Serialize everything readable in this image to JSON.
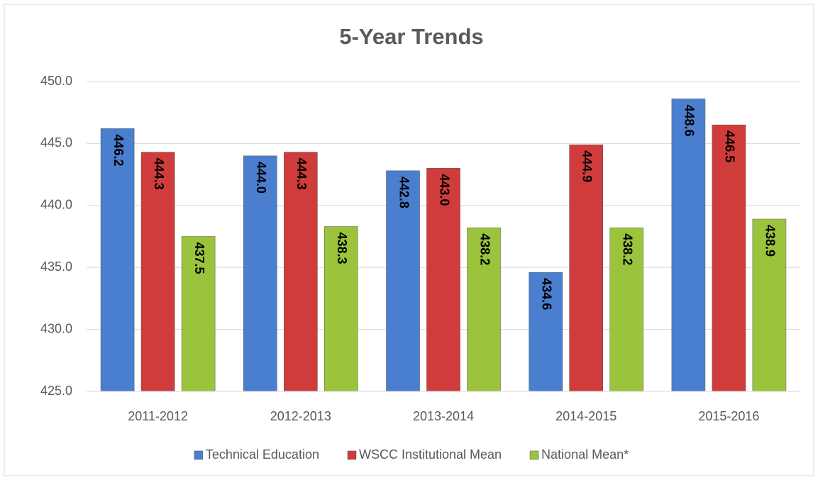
{
  "chart_data": {
    "type": "bar",
    "title": "5-Year Trends",
    "categories": [
      "2011-2012",
      "2012-2013",
      "2013-2014",
      "2014-2015",
      "2015-2016"
    ],
    "series": [
      {
        "name": "Technical Education",
        "color": "#4a7fd0",
        "values": [
          446.2,
          444.0,
          442.8,
          434.6,
          448.6
        ],
        "value_labels": [
          "446.2",
          "444.0",
          "442.8",
          "434.6",
          "448.6"
        ]
      },
      {
        "name": "WSCC Institutional Mean",
        "color": "#d03c3c",
        "values": [
          444.3,
          444.3,
          443.0,
          444.9,
          446.5
        ],
        "value_labels": [
          "444.3",
          "444.3",
          "443.0",
          "444.9",
          "446.5"
        ]
      },
      {
        "name": "National Mean*",
        "color": "#9bc43c",
        "values": [
          437.5,
          438.3,
          438.2,
          438.2,
          438.9
        ],
        "value_labels": [
          "437.5",
          "438.3",
          "438.2",
          "438.2",
          "438.9"
        ]
      }
    ],
    "ylim": [
      425,
      450
    ],
    "yticks": [
      {
        "value": 425,
        "label": "425.0"
      },
      {
        "value": 430,
        "label": "430.0"
      },
      {
        "value": 435,
        "label": "435.0"
      },
      {
        "value": 440,
        "label": "440.0"
      },
      {
        "value": 445,
        "label": "445.0"
      },
      {
        "value": 450,
        "label": "450.0"
      }
    ],
    "grid": true
  }
}
